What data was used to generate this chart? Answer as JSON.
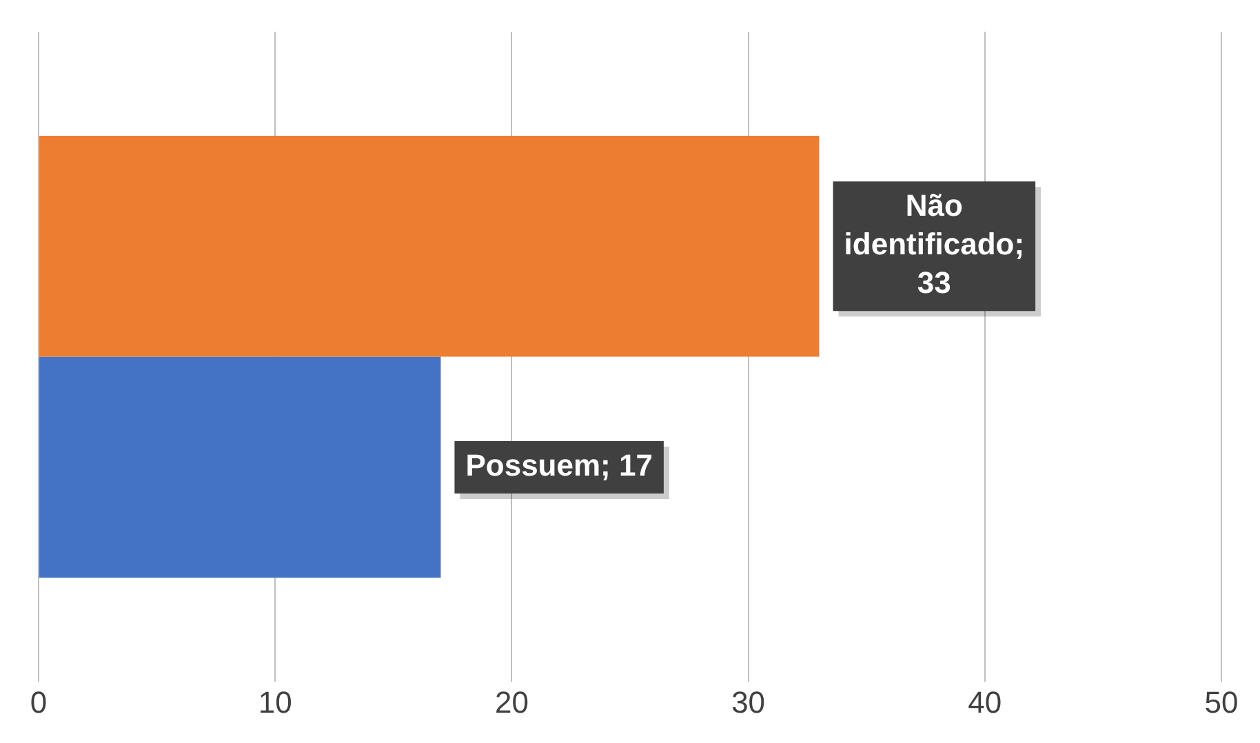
{
  "chart_data": {
    "type": "bar",
    "orientation": "horizontal",
    "categories": [
      null
    ],
    "series": [
      {
        "color": "#ed7d31",
        "values": [
          33
        ],
        "value_labels": [
          "Não identificado; 33"
        ]
      },
      {
        "color": "#4472c4",
        "values": [
          17
        ],
        "value_labels": [
          "Possuem; 17"
        ]
      }
    ],
    "xlim": [
      0,
      50
    ],
    "xticks": [
      0,
      10,
      20,
      30,
      40,
      50
    ],
    "grid": "x",
    "legend": false
  }
}
